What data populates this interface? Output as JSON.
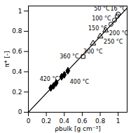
{
  "chart_data": {
    "type": "scatter",
    "x_label": "ρbulk [g cm⁻³]",
    "y_label": "π* [-]",
    "xlim": [
      0,
      1.1
    ],
    "ylim": [
      0,
      1.05
    ],
    "xticks": [
      0,
      0.2,
      0.4,
      0.6,
      0.8,
      1
    ],
    "yticks": [
      0,
      0.2,
      0.4,
      0.6,
      0.8,
      1
    ],
    "grid": false,
    "series": [
      {
        "type": "line",
        "color": "#000000",
        "line_style": "solid",
        "x": [
          0,
          1.1
        ],
        "values": [
          0,
          1.03
        ]
      },
      {
        "type": "scatter",
        "marker": "circle_open",
        "color": "#000000",
        "x": [
          1.0,
          0.99,
          0.96,
          0.92
        ],
        "values": [
          0.97,
          0.95,
          0.91,
          0.87
        ],
        "labels": [
          "16 °C",
          "50 °C",
          "100 °C",
          "150 °C"
        ]
      },
      {
        "type": "scatter",
        "marker": "triangle_open",
        "color": "#000000",
        "x": [
          0.86,
          0.8,
          0.72
        ],
        "values": [
          0.81,
          0.75,
          0.68
        ],
        "labels": [
          "200 °C",
          "250 °C",
          "300 °C"
        ]
      },
      {
        "type": "scatter",
        "marker": "square_open",
        "color": "#000000",
        "x": [
          0.61
        ],
        "values": [
          0.55
        ],
        "labels": [
          "360 °C"
        ]
      },
      {
        "type": "scatter",
        "marker": "diamond",
        "color": "#000000",
        "x": [
          0.4,
          0.44,
          0.37
        ],
        "values": [
          0.37,
          0.41,
          0.35
        ],
        "labels": [
          "400 °C",
          null,
          null
        ]
      },
      {
        "type": "scatter",
        "marker": "diamond",
        "color": "#000000",
        "x": [
          0.28,
          0.31,
          0.25
        ],
        "values": [
          0.26,
          0.29,
          0.24
        ],
        "labels": [
          "420 °C",
          null,
          null
        ]
      }
    ]
  }
}
